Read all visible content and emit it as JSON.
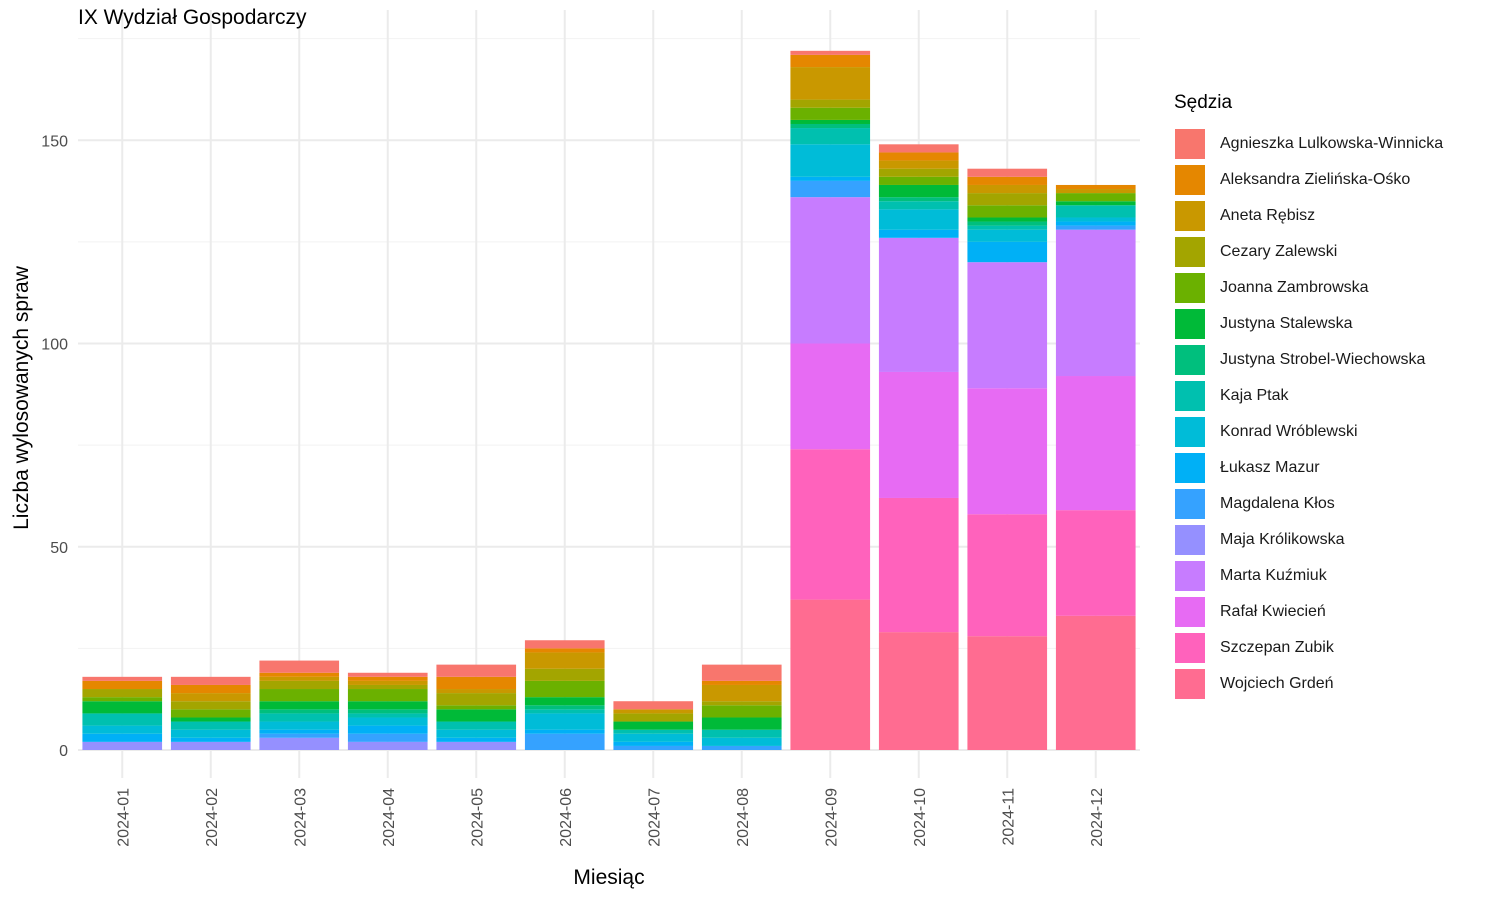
{
  "chart_data": {
    "type": "bar",
    "stacked": true,
    "title": "IX Wydział Gospodarczy",
    "xlabel": "Miesiąc",
    "ylabel": "Liczba wylosowanych spraw",
    "ylim": [
      0,
      180
    ],
    "yticks": [
      0,
      50,
      100,
      150
    ],
    "grid": true,
    "legend_title": "Sędzia",
    "legend_position": "right",
    "categories": [
      "2024-01",
      "2024-02",
      "2024-03",
      "2024-04",
      "2024-05",
      "2024-06",
      "2024-07",
      "2024-08",
      "2024-09",
      "2024-10",
      "2024-11",
      "2024-12"
    ],
    "series": [
      {
        "name": "Agnieszka Lulkowska-Winnicka",
        "color": "#F8766D",
        "values": [
          1,
          2,
          3,
          1,
          3,
          2,
          2,
          4,
          1,
          2,
          2,
          0
        ]
      },
      {
        "name": "Aleksandra Zielińska-Ośko",
        "color": "#E58700",
        "values": [
          2,
          2,
          1,
          1,
          3,
          1,
          0,
          1,
          3,
          2,
          2,
          1
        ]
      },
      {
        "name": "Aneta Rębisz",
        "color": "#C99800",
        "values": [
          0,
          2,
          1,
          1,
          1,
          4,
          1,
          4,
          8,
          2,
          2,
          1
        ]
      },
      {
        "name": "Cezary Zalewski",
        "color": "#A3A500",
        "values": [
          2,
          2,
          2,
          1,
          3,
          3,
          2,
          1,
          2,
          2,
          3,
          0
        ]
      },
      {
        "name": "Joanna Zambrowska",
        "color": "#6BB100",
        "values": [
          1,
          2,
          3,
          3,
          1,
          4,
          0,
          3,
          3,
          2,
          3,
          2
        ]
      },
      {
        "name": "Justyna Stalewska",
        "color": "#00BA38",
        "values": [
          3,
          1,
          2,
          2,
          3,
          2,
          2,
          3,
          1,
          3,
          1,
          1
        ]
      },
      {
        "name": "Justyna Strobel-Wiechowska",
        "color": "#00BF7D",
        "values": [
          0,
          0,
          1,
          1,
          0,
          1,
          0,
          0,
          1,
          1,
          1,
          0
        ]
      },
      {
        "name": "Kaja Ptak",
        "color": "#00C0AF",
        "values": [
          3,
          2,
          2,
          1,
          2,
          1,
          1,
          2,
          4,
          2,
          1,
          3
        ]
      },
      {
        "name": "Konrad Wróblewski",
        "color": "#00BCD8",
        "values": [
          2,
          2,
          2,
          2,
          2,
          4,
          2,
          2,
          8,
          5,
          3,
          1
        ]
      },
      {
        "name": "Łukasz Mazur",
        "color": "#00B0F6",
        "values": [
          2,
          1,
          1,
          2,
          1,
          1,
          1,
          0,
          1,
          2,
          5,
          1
        ]
      },
      {
        "name": "Magdalena Kłos",
        "color": "#35A2FF",
        "values": [
          0,
          0,
          1,
          2,
          0,
          4,
          1,
          1,
          4,
          0,
          0,
          1
        ]
      },
      {
        "name": "Maja Królikowska",
        "color": "#9590FF",
        "values": [
          2,
          2,
          3,
          2,
          2,
          0,
          0,
          0,
          0,
          0,
          0,
          0
        ]
      },
      {
        "name": "Marta Kuźmiuk",
        "color": "#C77CFF",
        "values": [
          0,
          0,
          0,
          0,
          0,
          0,
          0,
          0,
          36,
          33,
          31,
          36
        ]
      },
      {
        "name": "Rafał Kwiecień",
        "color": "#E76BF3",
        "values": [
          0,
          0,
          0,
          0,
          0,
          0,
          0,
          0,
          26,
          31,
          31,
          33
        ]
      },
      {
        "name": "Szczepan Zubik",
        "color": "#FF62BC",
        "values": [
          0,
          0,
          0,
          0,
          0,
          0,
          0,
          0,
          37,
          33,
          30,
          26
        ]
      },
      {
        "name": "Wojciech Grdeń",
        "color": "#FF6C91",
        "values": [
          0,
          0,
          0,
          0,
          0,
          0,
          0,
          0,
          37,
          29,
          28,
          33
        ]
      }
    ]
  }
}
